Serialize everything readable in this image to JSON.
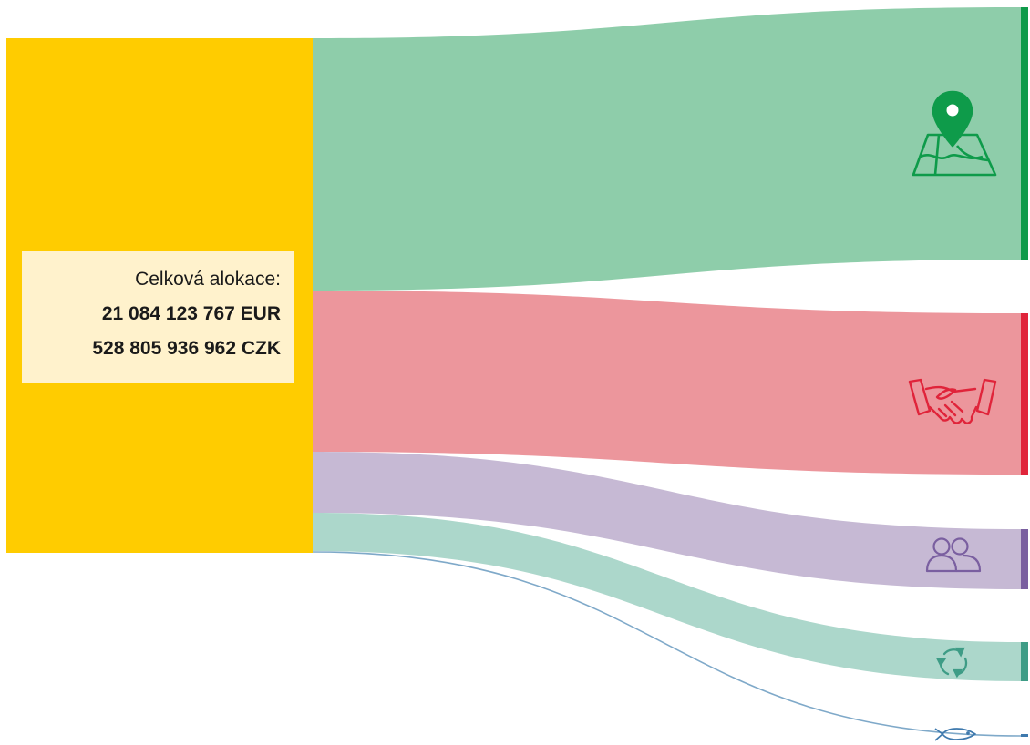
{
  "source": {
    "label": "Celková alokace:",
    "amount_eur": "21 084 123 767 EUR",
    "amount_czk": "528 805 936 962 CZK",
    "color": "#FFCC00",
    "label_bg": "#FFF2CC"
  },
  "flows": [
    {
      "id": "regional",
      "icon": "map-pin-icon",
      "flow_color": "#8ECDAA",
      "accent": "#0E9B4A"
    },
    {
      "id": "cohesion",
      "icon": "handshake-icon",
      "flow_color": "#EC969C",
      "accent": "#E0243A"
    },
    {
      "id": "social",
      "icon": "people-icon",
      "flow_color": "#C6B9D4",
      "accent": "#7A5FA0"
    },
    {
      "id": "transition",
      "icon": "recycle-icon",
      "flow_color": "#ACD7CB",
      "accent": "#3E9C86"
    },
    {
      "id": "fisheries",
      "icon": "fish-icon",
      "flow_color": "#7FA9C9",
      "accent": "#3E79AD"
    }
  ]
}
